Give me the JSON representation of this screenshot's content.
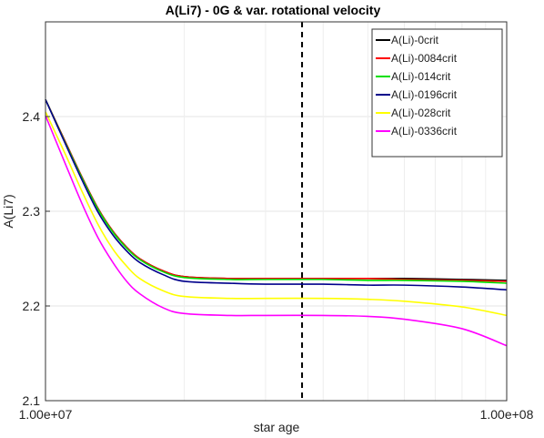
{
  "chart_data": {
    "type": "line",
    "title": "A(Li7) - 0G & var. rotational velocity",
    "xlabel": "star age",
    "ylabel": "A(Li7)",
    "x_scale": "log",
    "xlim": [
      10000000,
      100000000
    ],
    "ylim": [
      2.1,
      2.5
    ],
    "x_ticks": [
      {
        "value": 10000000,
        "label": "1.00e+07"
      },
      {
        "value": 100000000,
        "label": "1.00e+08"
      }
    ],
    "y_ticks": [
      {
        "value": 2.1,
        "label": "2.1"
      },
      {
        "value": 2.2,
        "label": "2.2"
      },
      {
        "value": 2.3,
        "label": "2.3"
      },
      {
        "value": 2.4,
        "label": "2.4"
      }
    ],
    "grid": true,
    "legend_position": "top-right",
    "vertical_reference_line": {
      "x": 36000000,
      "style": "dashed",
      "color": "#000000"
    },
    "x": [
      10000000,
      11000000,
      12000000,
      13000000,
      14000000,
      15000000,
      16000000,
      18000000,
      20000000,
      25000000,
      30000000,
      40000000,
      50000000,
      60000000,
      80000000,
      100000000
    ],
    "series": [
      {
        "name": "A(Li)-0crit",
        "color": "#000000",
        "values": [
          2.418,
          2.375,
          2.336,
          2.303,
          2.279,
          2.262,
          2.25,
          2.237,
          2.231,
          2.229,
          2.229,
          2.229,
          2.229,
          2.229,
          2.228,
          2.227
        ]
      },
      {
        "name": "A(Li)-0084crit",
        "color": "#ff0000",
        "values": [
          2.418,
          2.375,
          2.336,
          2.303,
          2.279,
          2.262,
          2.25,
          2.237,
          2.231,
          2.229,
          2.229,
          2.229,
          2.229,
          2.228,
          2.227,
          2.226
        ]
      },
      {
        "name": "A(Li)-014crit",
        "color": "#00e000",
        "values": [
          2.418,
          2.374,
          2.335,
          2.302,
          2.278,
          2.261,
          2.249,
          2.236,
          2.23,
          2.228,
          2.228,
          2.228,
          2.227,
          2.227,
          2.226,
          2.224
        ]
      },
      {
        "name": "A(Li)-0196crit",
        "color": "#00008b",
        "values": [
          2.418,
          2.373,
          2.333,
          2.299,
          2.275,
          2.258,
          2.246,
          2.233,
          2.226,
          2.224,
          2.223,
          2.223,
          2.222,
          2.222,
          2.22,
          2.217
        ]
      },
      {
        "name": "A(Li)-028crit",
        "color": "#ffff00",
        "values": [
          2.405,
          2.362,
          2.321,
          2.286,
          2.26,
          2.242,
          2.229,
          2.216,
          2.21,
          2.208,
          2.208,
          2.208,
          2.207,
          2.205,
          2.199,
          2.19
        ]
      },
      {
        "name": "A(Li)-0336crit",
        "color": "#ff00ff",
        "values": [
          2.401,
          2.352,
          2.308,
          2.272,
          2.246,
          2.226,
          2.213,
          2.198,
          2.192,
          2.19,
          2.19,
          2.19,
          2.189,
          2.186,
          2.176,
          2.158
        ]
      }
    ]
  }
}
